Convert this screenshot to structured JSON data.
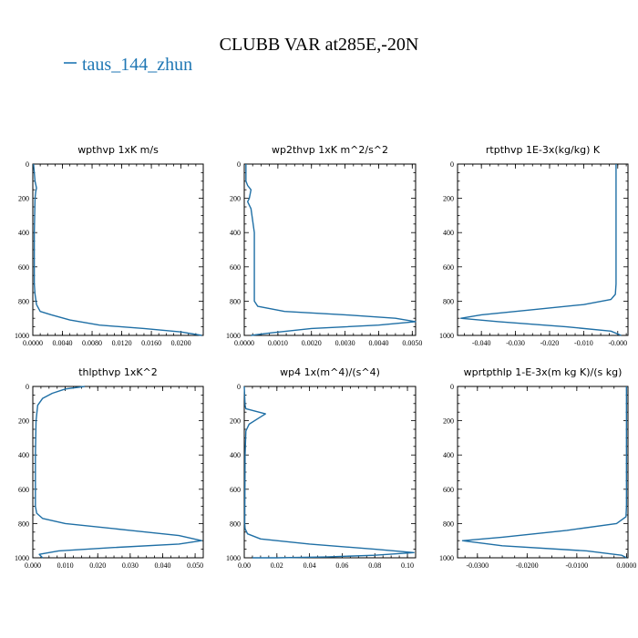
{
  "title": "CLUBB VAR at285E,-20N",
  "legend": {
    "entries": [
      {
        "label": "taus_144_zhun",
        "color": "#1f77b4"
      }
    ]
  },
  "chart_data": [
    {
      "type": "line",
      "title": "wpthvp  1xK m/s",
      "xlim": [
        0,
        0.023
      ],
      "ylim": [
        1000,
        0
      ],
      "xticks": [
        0.0,
        0.004,
        0.008,
        0.012,
        0.016,
        0.02
      ],
      "xtick_labels": [
        "0.0000",
        "0.0040",
        "0.0080",
        "0.0120",
        "0.0160",
        "0.0200"
      ],
      "yticks": [
        0,
        200,
        400,
        600,
        800,
        1000
      ],
      "ytick_labels": [
        "0",
        "200",
        "400",
        "600",
        "800",
        "1000"
      ],
      "series": [
        {
          "color": "#1f6fa5",
          "x": [
            0.0001,
            0.0003,
            0.0005,
            0.0004,
            0.0003,
            0.0002,
            0.0002,
            0.0002,
            0.0003,
            0.0005,
            0.001,
            0.0025,
            0.005,
            0.009,
            0.015,
            0.02,
            0.0228
          ],
          "y": [
            0,
            100,
            140,
            160,
            200,
            400,
            600,
            700,
            760,
            820,
            860,
            880,
            910,
            940,
            960,
            980,
            1000
          ]
        }
      ]
    },
    {
      "type": "line",
      "title": "wp2thvp  1xK m^2/s^2",
      "xlim": [
        0,
        0.0051
      ],
      "ylim": [
        1000,
        0
      ],
      "xticks": [
        0.0,
        0.001,
        0.002,
        0.003,
        0.004,
        0.005
      ],
      "xtick_labels": [
        "0.0000",
        "0.0010",
        "0.0020",
        "0.0030",
        "0.0040",
        "0.0050"
      ],
      "yticks": [
        0,
        200,
        400,
        600,
        800,
        1000
      ],
      "ytick_labels": [
        "0",
        "200",
        "400",
        "600",
        "800",
        "1000"
      ],
      "series": [
        {
          "color": "#1f6fa5",
          "x": [
            5e-05,
            5e-05,
            0.0001,
            0.0002,
            0.00015,
            0.0001,
            0.0002,
            0.0003,
            0.0003,
            0.0003,
            0.0004,
            0.0012,
            0.003,
            0.0045,
            0.0051,
            0.004,
            0.002,
            0.0008,
            0.0002
          ],
          "y": [
            0,
            100,
            125,
            150,
            200,
            220,
            260,
            400,
            600,
            800,
            830,
            860,
            880,
            900,
            920,
            940,
            960,
            985,
            1000
          ]
        }
      ]
    },
    {
      "type": "line",
      "title": "rtpthvp  1E-3x(kg/kg) K",
      "xlim": [
        -0.047,
        0.003
      ],
      "ylim": [
        1000,
        0
      ],
      "xticks": [
        -0.04,
        -0.03,
        -0.02,
        -0.01,
        0.0
      ],
      "xtick_labels": [
        "-0.040",
        "-0.030",
        "-0.020",
        "-0.010",
        "-0.000"
      ],
      "yticks": [
        0,
        200,
        400,
        600,
        800,
        1000
      ],
      "ytick_labels": [
        "0",
        "200",
        "400",
        "600",
        "800",
        "1000"
      ],
      "series": [
        {
          "color": "#1f6fa5",
          "x": [
            -0.0005,
            -0.0005,
            -0.0005,
            -0.0007,
            -0.002,
            -0.01,
            -0.025,
            -0.04,
            -0.046,
            -0.035,
            -0.015,
            -0.002,
            0.001
          ],
          "y": [
            0,
            200,
            700,
            760,
            790,
            820,
            850,
            880,
            900,
            920,
            950,
            975,
            1000
          ]
        }
      ]
    },
    {
      "type": "line",
      "title": "thlpthvp  1xK^2",
      "xlim": [
        0,
        0.0525
      ],
      "ylim": [
        1000,
        0
      ],
      "xticks": [
        0.0,
        0.01,
        0.02,
        0.03,
        0.04,
        0.05
      ],
      "xtick_labels": [
        "0.000",
        "0.010",
        "0.020",
        "0.030",
        "0.040",
        "0.050"
      ],
      "yticks": [
        0,
        200,
        400,
        600,
        800,
        1000
      ],
      "ytick_labels": [
        "0",
        "200",
        "400",
        "600",
        "800",
        "1000"
      ],
      "series": [
        {
          "color": "#1f6fa5",
          "x": [
            0.016,
            0.01,
            0.006,
            0.003,
            0.0015,
            0.001,
            0.0008,
            0.0008,
            0.0012,
            0.003,
            0.01,
            0.03,
            0.045,
            0.052,
            0.045,
            0.025,
            0.008,
            0.002,
            0.003
          ],
          "y": [
            0,
            15,
            40,
            70,
            110,
            200,
            400,
            700,
            740,
            770,
            800,
            840,
            870,
            900,
            920,
            940,
            960,
            980,
            1000
          ]
        }
      ]
    },
    {
      "type": "line",
      "title": "wp4  1x(m^4)/(s^4)",
      "xlim": [
        0,
        0.105
      ],
      "ylim": [
        1000,
        0
      ],
      "xticks": [
        0.0,
        0.02,
        0.04,
        0.06,
        0.08,
        0.1
      ],
      "xtick_labels": [
        "0.00",
        "0.02",
        "0.04",
        "0.06",
        "0.08",
        "0.10"
      ],
      "yticks": [
        0,
        200,
        400,
        600,
        800,
        1000
      ],
      "ytick_labels": [
        "0",
        "200",
        "400",
        "600",
        "800",
        "1000"
      ],
      "series": [
        {
          "color": "#1f6fa5",
          "x": [
            0.0,
            0.0005,
            0.001,
            0.013,
            0.008,
            0.003,
            0.001,
            0.0005,
            0.0003,
            0.0005,
            0.002,
            0.01,
            0.04,
            0.08,
            0.104,
            0.08,
            0.05,
            0.02,
            0.005
          ],
          "y": [
            0,
            110,
            130,
            160,
            190,
            220,
            260,
            400,
            800,
            830,
            860,
            890,
            920,
            950,
            970,
            985,
            995,
            1000,
            1000
          ]
        }
      ]
    },
    {
      "type": "line",
      "title": "wprtpthlp  1-E-3x(m kg K)/(s kg)",
      "xlim": [
        -0.034,
        0.0003
      ],
      "ylim": [
        1000,
        0
      ],
      "xticks": [
        -0.03,
        -0.02,
        -0.01,
        0.0
      ],
      "xtick_labels": [
        "-0.0300",
        "-0.0200",
        "-0.0100",
        "0.0000"
      ],
      "yticks": [
        0,
        200,
        400,
        600,
        800,
        1000
      ],
      "ytick_labels": [
        "0",
        "200",
        "400",
        "600",
        "800",
        "1000"
      ],
      "series": [
        {
          "color": "#1f6fa5",
          "x": [
            0.0,
            0.0,
            -0.0001,
            -0.002,
            -0.012,
            -0.025,
            -0.033,
            -0.025,
            -0.008,
            -0.001,
            0.0
          ],
          "y": [
            0,
            700,
            760,
            800,
            840,
            880,
            900,
            930,
            960,
            985,
            1000
          ]
        }
      ]
    }
  ]
}
